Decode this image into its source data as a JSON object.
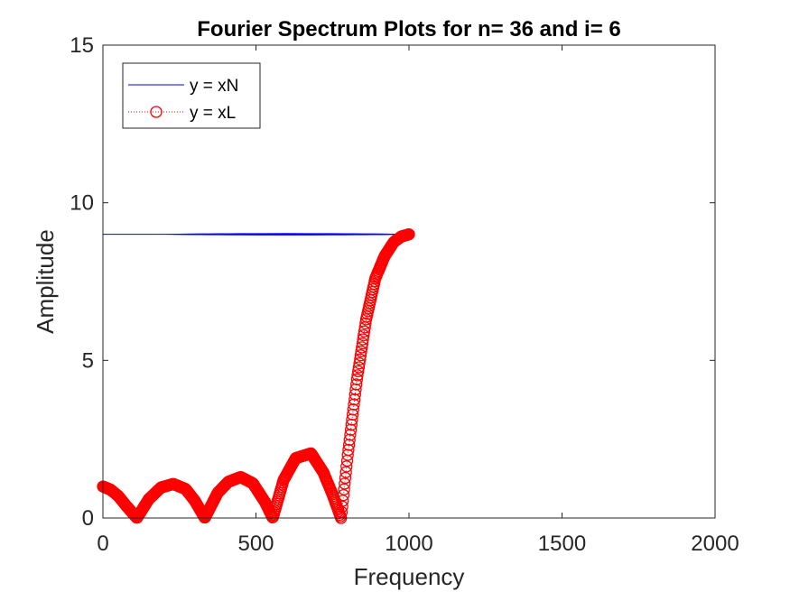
{
  "chart_data": {
    "type": "line",
    "title": "Fourier Spectrum Plots for n= 36 and i= 6",
    "xlabel": "Frequency",
    "ylabel": "Amplitude",
    "xlim": [
      0,
      2000
    ],
    "ylim": [
      0,
      15
    ],
    "xticks": [
      "0",
      "500",
      "1000",
      "1500",
      "2000"
    ],
    "yticks": [
      "0",
      "5",
      "10",
      "15"
    ],
    "grid": false,
    "legend_position": "top-left",
    "series": [
      {
        "name": "y = xN",
        "color": "#0000ff",
        "style": "solid line",
        "x": [
          0,
          100,
          200,
          300,
          400,
          500,
          600,
          700,
          800,
          900,
          1000
        ],
        "y": [
          9,
          9,
          9,
          9,
          9,
          9,
          9,
          9,
          9,
          9,
          9
        ]
      },
      {
        "name": "y = xL",
        "color": "#ff0000",
        "style": "dotted line with circle markers",
        "x": [
          0,
          25,
          50,
          75,
          111,
          150,
          190,
          230,
          270,
          300,
          333,
          375,
          410,
          450,
          490,
          530,
          555,
          590,
          630,
          680,
          720,
          750,
          778,
          800,
          830,
          860,
          890,
          920,
          950,
          975,
          1000
        ],
        "y": [
          1.0,
          0.9,
          0.7,
          0.4,
          0.0,
          0.6,
          0.97,
          1.08,
          0.92,
          0.55,
          0.0,
          0.8,
          1.15,
          1.3,
          1.1,
          0.5,
          0.0,
          1.2,
          1.9,
          2.05,
          1.45,
          0.75,
          0.0,
          2.0,
          4.4,
          6.3,
          7.6,
          8.3,
          8.75,
          8.93,
          9.0
        ]
      }
    ]
  }
}
